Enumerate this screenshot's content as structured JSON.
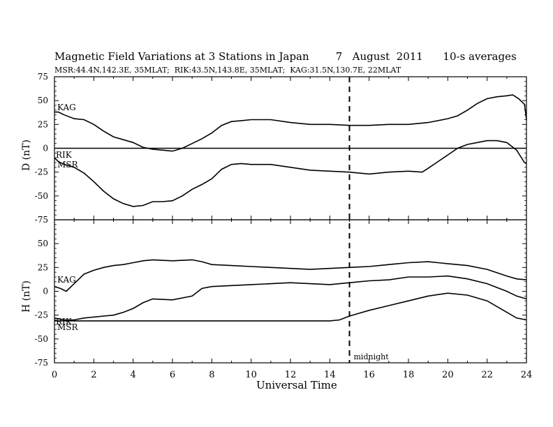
{
  "header": {
    "title": "Magnetic Field Variations at 3 Stations in Japan        7   August  2011      10-s averages",
    "subtitle": "MSR:44.4N,142.3E, 35MLAT;  RIK:43.5N,143.8E, 35MLAT;  KAG:31.5N,130.7E, 22MLAT"
  },
  "annotations": {
    "midnight": "midnight"
  },
  "chart_data": [
    {
      "type": "line",
      "panel": "D",
      "xlabel": "",
      "ylabel": "D (nT)",
      "xlim": [
        0,
        24
      ],
      "ylim": [
        -75,
        75
      ],
      "yticks": [
        75,
        50,
        25,
        0,
        -25,
        -50,
        -75
      ],
      "yticklabels": [
        "75",
        "50",
        "25",
        "0",
        "-25",
        "-50",
        "-75"
      ],
      "series": [
        {
          "name": "KAG",
          "x": [
            0,
            0.2,
            0.5,
            1,
            1.5,
            2,
            2.5,
            3,
            3.5,
            4,
            4.5,
            5,
            5.5,
            6,
            6.5,
            7,
            7.5,
            8,
            8.5,
            9,
            9.5,
            10,
            11,
            12,
            13,
            14,
            15,
            16,
            17,
            18,
            19,
            20,
            20.5,
            21,
            21.5,
            22,
            22.5,
            23,
            23.3,
            23.6,
            23.9,
            24
          ],
          "values": [
            38,
            38,
            35,
            31,
            30,
            25,
            18,
            12,
            9,
            6,
            1,
            -1,
            -2,
            -3,
            0,
            5,
            10,
            16,
            24,
            28,
            29,
            30,
            30,
            27,
            25,
            25,
            24,
            24,
            25,
            25,
            27,
            31,
            34,
            40,
            47,
            52,
            54,
            55,
            56,
            52,
            46,
            30
          ]
        },
        {
          "name": "MSR",
          "x": [
            0,
            0.2,
            0.5,
            1,
            1.5,
            2,
            2.5,
            3,
            3.5,
            4,
            4.5,
            5,
            5.5,
            6,
            6.5,
            7,
            7.5,
            8,
            8.5,
            9,
            9.5,
            10,
            11,
            12,
            13,
            14,
            15,
            16,
            17,
            18,
            18.7,
            19,
            19.5,
            20,
            20.5,
            21,
            21.5,
            22,
            22.5,
            23,
            23.5,
            23.9,
            24
          ],
          "values": [
            -10,
            -14,
            -17,
            -20,
            -26,
            -35,
            -45,
            -53,
            -58,
            -61,
            -60,
            -56,
            -56,
            -55,
            -50,
            -43,
            -38,
            -32,
            -22,
            -17,
            -16,
            -17,
            -17,
            -20,
            -23,
            -24,
            -25,
            -27,
            -25,
            -24,
            -25,
            -21,
            -14,
            -7,
            0,
            4,
            6,
            8,
            8,
            6,
            -2,
            -15,
            -16
          ]
        },
        {
          "name": "RIK",
          "x": [
            0,
            24
          ],
          "values": [
            0,
            0
          ]
        }
      ],
      "labels": [
        "KAG",
        "RIK",
        "MSR"
      ]
    },
    {
      "type": "line",
      "panel": "H",
      "xlabel": "Universal Time",
      "ylabel": "H (nT)",
      "xlim": [
        0,
        24
      ],
      "ylim": [
        -75,
        75
      ],
      "xticks": [
        0,
        2,
        4,
        6,
        8,
        10,
        12,
        14,
        16,
        18,
        20,
        22,
        24
      ],
      "xticklabels": [
        "0",
        "2",
        "4",
        "6",
        "8",
        "10",
        "12",
        "14",
        "16",
        "18",
        "20",
        "22",
        "24"
      ],
      "yticks": [
        75,
        50,
        25,
        0,
        -25,
        -50,
        -75
      ],
      "yticklabels": [
        "",
        "50",
        "25",
        "0",
        "-25",
        "-50",
        "-75"
      ],
      "series": [
        {
          "name": "KAG",
          "x": [
            0,
            0.3,
            0.6,
            1,
            1.5,
            2,
            2.5,
            3,
            3.5,
            4,
            4.5,
            5,
            6,
            7,
            7.5,
            8,
            9,
            10,
            11,
            12,
            13,
            14,
            15,
            16,
            17,
            18,
            19,
            20,
            21,
            22,
            23,
            23.5,
            24
          ],
          "values": [
            5,
            3,
            0,
            8,
            18,
            22,
            25,
            27,
            28,
            30,
            32,
            33,
            32,
            33,
            31,
            28,
            27,
            26,
            25,
            24,
            23,
            24,
            25,
            26,
            28,
            30,
            31,
            29,
            27,
            23,
            16,
            13,
            12
          ]
        },
        {
          "name": "RIK",
          "x": [
            0,
            0.5,
            1,
            1.5,
            2,
            2.5,
            3,
            3.5,
            4,
            4.5,
            5,
            6,
            7,
            7.5,
            8,
            9,
            10,
            11,
            12,
            13,
            14,
            15,
            16,
            17,
            18,
            19,
            20,
            21,
            22,
            23,
            23.5,
            24
          ],
          "values": [
            -28,
            -30,
            -30,
            -28,
            -27,
            -26,
            -25,
            -22,
            -18,
            -12,
            -8,
            -9,
            -5,
            3,
            5,
            6,
            7,
            8,
            9,
            8,
            7,
            9,
            11,
            12,
            15,
            15,
            16,
            13,
            8,
            0,
            -5,
            -8
          ]
        },
        {
          "name": "MSR",
          "x": [
            0,
            14,
            14.5,
            15,
            16,
            17,
            18,
            19,
            20,
            21,
            22,
            23,
            23.5,
            24
          ],
          "values": [
            -31,
            -31,
            -30,
            -26,
            -20,
            -15,
            -10,
            -5,
            -2,
            -4,
            -10,
            -22,
            -28,
            -30
          ]
        }
      ],
      "labels": [
        "KAG",
        "RIK",
        "MSR"
      ]
    }
  ]
}
